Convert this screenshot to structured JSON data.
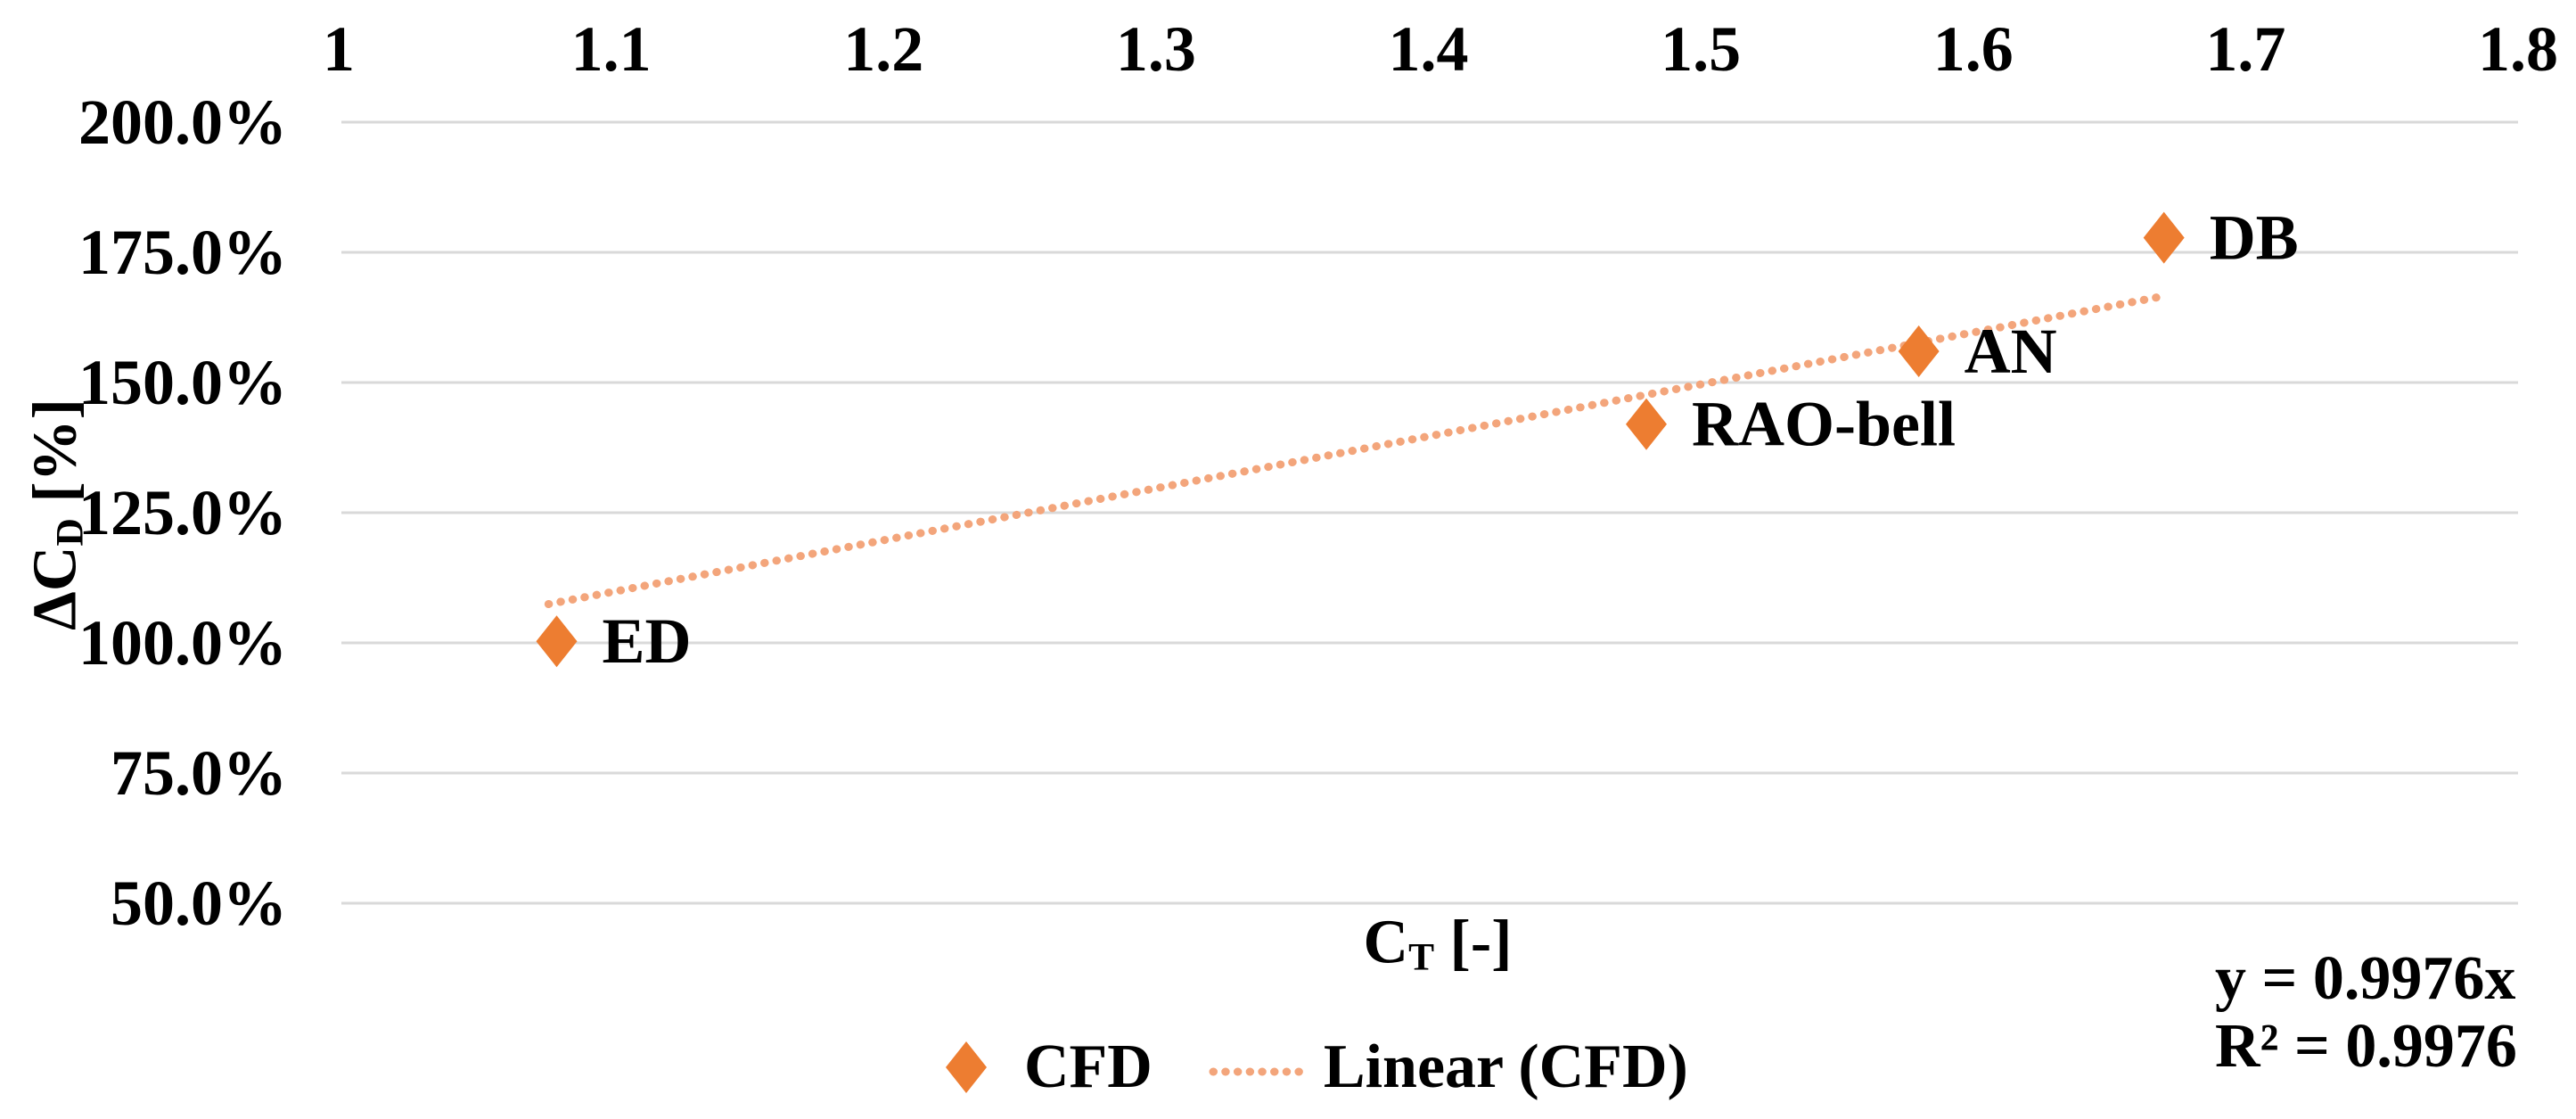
{
  "chart_data": {
    "type": "scatter",
    "title": "",
    "x_axis": {
      "label": "CT [-]",
      "label_parts": {
        "prefix": "C",
        "sub": "T",
        "suffix": " [-]"
      },
      "min": 1,
      "max": 1.8,
      "tick_position": "top",
      "ticks": [
        {
          "value": 1,
          "label": "1"
        },
        {
          "value": 1.1,
          "label": "1.1"
        },
        {
          "value": 1.2,
          "label": "1.2"
        },
        {
          "value": 1.3,
          "label": "1.3"
        },
        {
          "value": 1.4,
          "label": "1.4"
        },
        {
          "value": 1.5,
          "label": "1.5"
        },
        {
          "value": 1.6,
          "label": "1.6"
        },
        {
          "value": 1.7,
          "label": "1.7"
        },
        {
          "value": 1.8,
          "label": "1.8"
        }
      ]
    },
    "y_axis": {
      "label": "ΔCD [%]",
      "label_parts": {
        "prefix": "ΔC",
        "sub": "D",
        "suffix": " [%]"
      },
      "min": 50,
      "max": 200,
      "unit": "%",
      "ticks": [
        {
          "value": 200,
          "label": "200.0%"
        },
        {
          "value": 175,
          "label": "175.0%"
        },
        {
          "value": 150,
          "label": "150.0%"
        },
        {
          "value": 125,
          "label": "125.0%"
        },
        {
          "value": 100,
          "label": "100.0%"
        },
        {
          "value": 75,
          "label": "75.0%"
        },
        {
          "value": 50,
          "label": "50.0%"
        }
      ]
    },
    "gridlines": {
      "horizontal": true,
      "vertical": false,
      "color": "#D9D9D9"
    },
    "series": [
      {
        "name": "CFD",
        "marker": "diamond",
        "color": "#ED7D31",
        "points": [
          {
            "label": "ED",
            "x": 1.08,
            "y_pct": 100.3
          },
          {
            "label": "RAO-bell",
            "x": 1.48,
            "y_pct": 142.0
          },
          {
            "label": "AN",
            "x": 1.58,
            "y_pct": 156.0
          },
          {
            "label": "DB",
            "x": 1.67,
            "y_pct": 177.8
          }
        ]
      }
    ],
    "trendline": {
      "name": "Linear (CFD)",
      "style": "dotted",
      "color": "#F3A57B",
      "slope": 0.9976,
      "intercept": 0,
      "x_start": 1.077,
      "x_end": 1.671
    },
    "legend": {
      "position": "bottom-center",
      "entries": [
        {
          "label": "CFD",
          "marker": "diamond"
        },
        {
          "label": "Linear (CFD)",
          "marker": "dotted-line"
        }
      ]
    },
    "annotation": {
      "line1": "y = 0.9976x",
      "line2": "R² = 0.9976"
    }
  },
  "colors": {
    "marker": "#ED7D31",
    "trendline": "#F3A57B",
    "gridline": "#D9D9D9",
    "text": "#000000",
    "background": "#FFFFFF"
  }
}
